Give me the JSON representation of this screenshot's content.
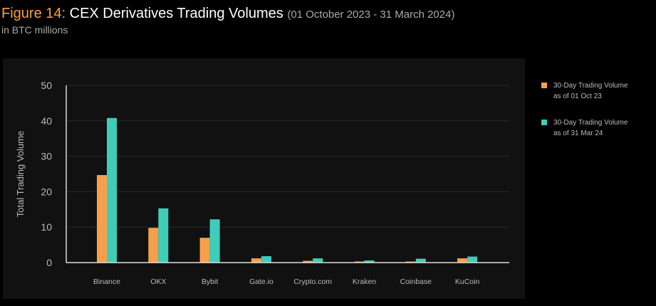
{
  "header": {
    "figure_label": "Figure 14:",
    "title": "CEX Derivatives Trading Volumes",
    "range": "(01 October 2023 - 31 March 2024)",
    "subtitle": "in BTC millions"
  },
  "colors": {
    "series1": "#f7a04b",
    "series2": "#3ecdb8"
  },
  "chart_data": {
    "type": "bar",
    "title": "CEX Derivatives Trading Volumes",
    "xlabel": "",
    "ylabel": "Total Trading Volume",
    "ylim": [
      0,
      50
    ],
    "yticks": [
      0,
      10,
      20,
      30,
      40,
      50
    ],
    "grid": true,
    "legend_position": "right",
    "categories": [
      "Binance",
      "OKX",
      "Bybit",
      "Gate.io",
      "Crypto.com",
      "Kraken",
      "Coinbase",
      "KuCoin"
    ],
    "series": [
      {
        "name": "30-Day Trading Volume as of 01 Oct 23",
        "line1": "30-Day Trading Volume",
        "line2": "as of 01 Oct 23",
        "values": [
          24.7,
          9.8,
          7.0,
          1.2,
          0.5,
          0.3,
          0.3,
          1.2
        ]
      },
      {
        "name": "30-Day Trading Volume as of 31 Mar 24",
        "line1": "30-Day Trading Volume",
        "line2": "as of 31 Mar 24",
        "values": [
          40.8,
          15.3,
          12.2,
          1.8,
          1.2,
          0.6,
          1.1,
          1.7
        ]
      }
    ]
  }
}
